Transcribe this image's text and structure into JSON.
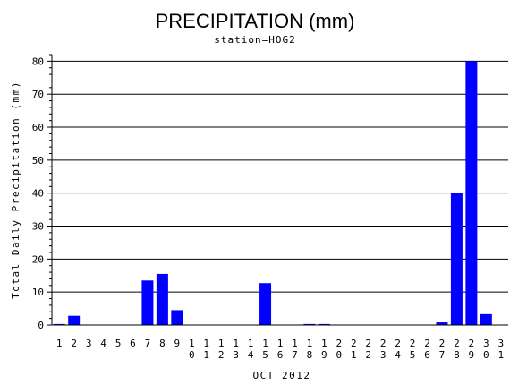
{
  "chart_data": {
    "type": "bar",
    "title": "PRECIPITATION (mm)",
    "subtitle": "station=HOG2",
    "xlabel": "OCT 2012",
    "ylabel": "Total Daily Precipitation (mm)",
    "ylim": [
      0,
      82
    ],
    "yticks": [
      0,
      10,
      20,
      30,
      40,
      50,
      60,
      70,
      80
    ],
    "grid": true,
    "bar_color": "#0000ff",
    "categories": [
      "1",
      "2",
      "3",
      "4",
      "5",
      "6",
      "7",
      "8",
      "9",
      "10",
      "11",
      "12",
      "13",
      "14",
      "15",
      "16",
      "17",
      "18",
      "19",
      "20",
      "21",
      "22",
      "23",
      "24",
      "25",
      "26",
      "27",
      "28",
      "29",
      "30",
      "31"
    ],
    "values": [
      0.3,
      2.8,
      0,
      0,
      0,
      0,
      13.5,
      15.5,
      4.5,
      0,
      0,
      0,
      0,
      0,
      12.7,
      0,
      0,
      0.3,
      0.3,
      0,
      0,
      0,
      0,
      0,
      0,
      0,
      0.8,
      40,
      80,
      3.3,
      0
    ]
  }
}
